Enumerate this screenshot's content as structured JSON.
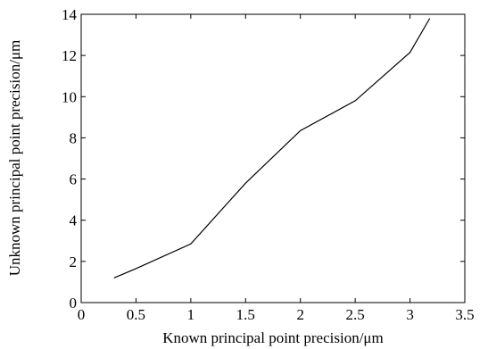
{
  "chart_data": {
    "type": "line",
    "xlabel": "Known principal point precision/μm",
    "ylabel": "Unknown principal point precision/μm",
    "xlim": [
      0,
      3.5
    ],
    "ylim": [
      0,
      14
    ],
    "xticks": [
      0,
      0.5,
      1,
      1.5,
      2,
      2.5,
      3,
      3.5
    ],
    "xtick_labels": [
      "0",
      "0.5",
      "1",
      "1.5",
      "2",
      "2.5",
      "3",
      "3.5"
    ],
    "yticks": [
      0,
      2,
      4,
      6,
      8,
      10,
      12,
      14
    ],
    "ytick_labels": [
      "0",
      "2",
      "4",
      "6",
      "8",
      "10",
      "12",
      "14"
    ],
    "grid": false,
    "series": [
      {
        "x": [
          0.3,
          0.5,
          1.0,
          1.5,
          2.0,
          2.5,
          3.0,
          3.18
        ],
        "y": [
          1.2,
          1.65,
          2.85,
          5.8,
          8.35,
          9.8,
          12.15,
          13.8
        ],
        "color": "#000000"
      }
    ]
  }
}
